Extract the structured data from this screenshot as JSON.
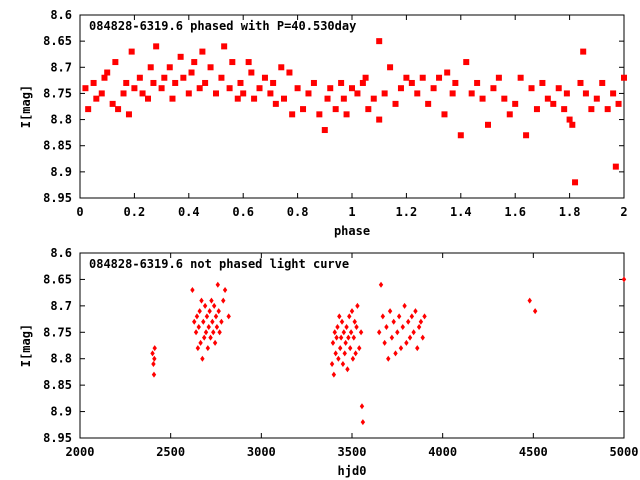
{
  "chart_data": [
    {
      "type": "scatter",
      "title": "084828-6319.6 phased with P=40.530day",
      "xlabel": "phase",
      "ylabel": "I[mag]",
      "xlim": [
        0,
        2
      ],
      "ylim": [
        8.95,
        8.6
      ],
      "y_inverted": true,
      "xticks": [
        0,
        0.2,
        0.4,
        0.6,
        0.8,
        1,
        1.2,
        1.4,
        1.6,
        1.8,
        2
      ],
      "xtick_labels": [
        "0",
        "0.2",
        "0.4",
        "0.6",
        "0.8",
        "1",
        "1.2",
        "1.4",
        "1.6",
        "1.8",
        "2"
      ],
      "yticks": [
        8.6,
        8.65,
        8.7,
        8.75,
        8.8,
        8.85,
        8.9,
        8.95
      ],
      "ytick_labels": [
        "8.6",
        "8.65",
        "8.7",
        "8.75",
        "8.8",
        "8.85",
        "8.9",
        "8.95"
      ],
      "marker_color": "#ff0000",
      "marker": "filled-square",
      "series": [
        {
          "x": [
            0.02,
            0.03,
            0.05,
            0.06,
            0.08,
            0.09,
            0.1,
            0.12,
            0.13,
            0.14,
            0.16,
            0.17,
            0.18,
            0.19,
            0.2,
            0.22,
            0.23,
            0.25,
            0.26,
            0.27,
            0.28,
            0.3,
            0.31,
            0.33,
            0.34,
            0.35,
            0.37,
            0.38,
            0.4,
            0.41,
            0.42,
            0.44,
            0.45,
            0.46,
            0.48,
            0.5,
            0.52,
            0.53,
            0.55,
            0.56,
            0.58,
            0.59,
            0.6,
            0.62,
            0.63,
            0.64,
            0.66,
            0.68,
            0.7,
            0.71,
            0.72,
            0.74,
            0.75,
            0.77,
            0.78,
            0.8,
            0.82,
            0.84,
            0.86,
            0.88,
            0.9,
            0.91,
            0.92,
            0.94,
            0.96,
            0.97,
            0.98,
            1.0,
            1.02,
            1.04,
            1.05,
            1.06,
            1.08,
            1.1,
            1.1,
            1.12,
            1.14,
            1.16,
            1.18,
            1.2,
            1.22,
            1.24,
            1.26,
            1.28,
            1.3,
            1.32,
            1.34,
            1.35,
            1.37,
            1.38,
            1.4,
            1.42,
            1.44,
            1.46,
            1.48,
            1.5,
            1.52,
            1.54,
            1.56,
            1.58,
            1.6,
            1.62,
            1.64,
            1.66,
            1.68,
            1.7,
            1.72,
            1.74,
            1.76,
            1.78,
            1.79,
            1.8,
            1.81,
            1.82,
            1.84,
            1.85,
            1.86,
            1.88,
            1.9,
            1.92,
            1.94,
            1.96,
            1.97,
            1.98,
            2.0
          ],
          "y": [
            8.74,
            8.78,
            8.73,
            8.76,
            8.75,
            8.72,
            8.71,
            8.77,
            8.69,
            8.78,
            8.75,
            8.73,
            8.79,
            8.67,
            8.74,
            8.72,
            8.75,
            8.76,
            8.7,
            8.73,
            8.66,
            8.74,
            8.72,
            8.7,
            8.76,
            8.73,
            8.68,
            8.72,
            8.75,
            8.71,
            8.69,
            8.74,
            8.67,
            8.73,
            8.7,
            8.75,
            8.72,
            8.66,
            8.74,
            8.69,
            8.76,
            8.73,
            8.75,
            8.69,
            8.71,
            8.76,
            8.74,
            8.72,
            8.75,
            8.73,
            8.77,
            8.7,
            8.76,
            8.71,
            8.79,
            8.74,
            8.78,
            8.75,
            8.73,
            8.79,
            8.82,
            8.76,
            8.74,
            8.78,
            8.73,
            8.76,
            8.79,
            8.74,
            8.75,
            8.73,
            8.72,
            8.78,
            8.76,
            8.8,
            8.65,
            8.75,
            8.7,
            8.77,
            8.74,
            8.72,
            8.73,
            8.75,
            8.72,
            8.77,
            8.74,
            8.72,
            8.79,
            8.71,
            8.75,
            8.73,
            8.83,
            8.69,
            8.75,
            8.73,
            8.76,
            8.81,
            8.74,
            8.72,
            8.76,
            8.79,
            8.77,
            8.72,
            8.83,
            8.74,
            8.78,
            8.73,
            8.76,
            8.77,
            8.74,
            8.78,
            8.75,
            8.8,
            8.81,
            8.92,
            8.73,
            8.67,
            8.75,
            8.78,
            8.76,
            8.73,
            8.78,
            8.75,
            8.89,
            8.77,
            8.72
          ]
        }
      ]
    },
    {
      "type": "scatter",
      "title": "084828-6319.6 not phased light curve",
      "xlabel": "hjd0",
      "ylabel": "I[mag]",
      "xlim": [
        2000,
        5000
      ],
      "ylim": [
        8.95,
        8.6
      ],
      "y_inverted": true,
      "xticks": [
        2000,
        2500,
        3000,
        3500,
        4000,
        4500,
        5000
      ],
      "xtick_labels": [
        "2000",
        "2500",
        "3000",
        "3500",
        "4000",
        "4500",
        "5000"
      ],
      "yticks": [
        8.6,
        8.65,
        8.7,
        8.75,
        8.8,
        8.85,
        8.9,
        8.95
      ],
      "ytick_labels": [
        "8.6",
        "8.65",
        "8.7",
        "8.75",
        "8.8",
        "8.85",
        "8.9",
        "8.95"
      ],
      "marker_color": "#ff0000",
      "marker": "filled-diamond",
      "series": [
        {
          "x": [
            2400,
            2405,
            2408,
            2410,
            2412,
            2620,
            2630,
            2640,
            2645,
            2650,
            2655,
            2660,
            2665,
            2670,
            2675,
            2680,
            2685,
            2690,
            2695,
            2700,
            2705,
            2710,
            2715,
            2720,
            2725,
            2730,
            2735,
            2740,
            2745,
            2750,
            2755,
            2760,
            2765,
            2770,
            2780,
            2790,
            2800,
            2820,
            3390,
            3395,
            3400,
            3405,
            3410,
            3415,
            3420,
            3425,
            3430,
            3435,
            3440,
            3445,
            3450,
            3455,
            3460,
            3465,
            3470,
            3475,
            3480,
            3485,
            3490,
            3495,
            3500,
            3505,
            3510,
            3515,
            3520,
            3525,
            3530,
            3540,
            3550,
            3555,
            3560,
            3650,
            3660,
            3670,
            3680,
            3690,
            3700,
            3710,
            3720,
            3730,
            3740,
            3750,
            3760,
            3770,
            3780,
            3790,
            3800,
            3810,
            3820,
            3830,
            3840,
            3850,
            3860,
            3870,
            3880,
            3890,
            3900,
            4480,
            4510,
            5000
          ],
          "y": [
            8.79,
            8.81,
            8.83,
            8.8,
            8.78,
            8.67,
            8.73,
            8.75,
            8.72,
            8.78,
            8.74,
            8.71,
            8.77,
            8.69,
            8.8,
            8.73,
            8.76,
            8.7,
            8.75,
            8.72,
            8.78,
            8.74,
            8.71,
            8.76,
            8.69,
            8.73,
            8.75,
            8.7,
            8.77,
            8.72,
            8.74,
            8.66,
            8.71,
            8.75,
            8.73,
            8.69,
            8.67,
            8.72,
            8.81,
            8.77,
            8.83,
            8.75,
            8.79,
            8.76,
            8.74,
            8.8,
            8.72,
            8.78,
            8.76,
            8.73,
            8.81,
            8.75,
            8.79,
            8.77,
            8.74,
            8.82,
            8.76,
            8.72,
            8.78,
            8.75,
            8.71,
            8.8,
            8.76,
            8.73,
            8.79,
            8.74,
            8.7,
            8.78,
            8.75,
            8.89,
            8.92,
            8.75,
            8.66,
            8.72,
            8.77,
            8.74,
            8.8,
            8.71,
            8.76,
            8.73,
            8.79,
            8.75,
            8.72,
            8.78,
            8.74,
            8.7,
            8.77,
            8.73,
            8.76,
            8.72,
            8.75,
            8.71,
            8.78,
            8.74,
            8.73,
            8.76,
            8.72,
            8.69,
            8.71,
            8.65
          ]
        }
      ]
    }
  ]
}
